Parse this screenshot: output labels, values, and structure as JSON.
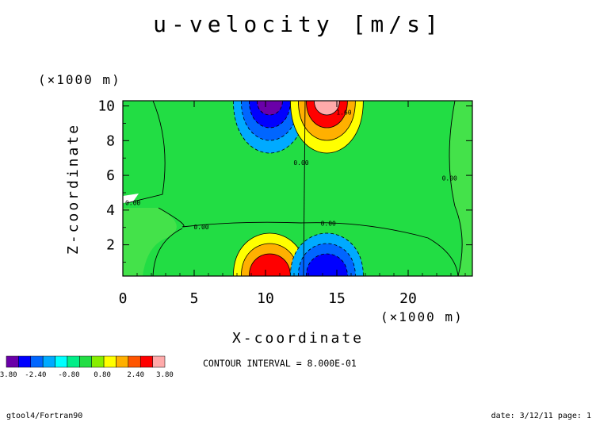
{
  "chart_data": {
    "type": "heatmap",
    "title": "u-velocity [m/s]",
    "xlabel": "X-coordinate",
    "ylabel": "Z-coordinate",
    "x_unit": "(×1000 m)",
    "y_unit": "(×1000 m)",
    "xlim": [
      0,
      24.5
    ],
    "ylim": [
      0.2,
      10.3
    ],
    "x_ticks": [
      0,
      5,
      10,
      15,
      20
    ],
    "y_ticks": [
      2,
      4,
      6,
      8,
      10
    ],
    "contour_interval_text": "CONTOUR INTERVAL = 8.000E-01",
    "contour_labels": [
      {
        "text": "0.00",
        "x": 0.7,
        "y": 4.3
      },
      {
        "text": "0.00",
        "x": 5.5,
        "y": 2.9
      },
      {
        "text": "0.00",
        "x": 14.4,
        "y": 3.1
      },
      {
        "text": "0.00",
        "x": 12.5,
        "y": 6.6
      },
      {
        "text": "0.00",
        "x": 22.9,
        "y": 5.7
      },
      {
        "text": "1.60",
        "x": 15.5,
        "y": 9.5
      }
    ],
    "colorbar": {
      "levels": [
        -3.8,
        -2.4,
        -0.8,
        0.8,
        2.4,
        3.8
      ],
      "labels": [
        "-3.80",
        "-2.40",
        "-0.80",
        "0.80",
        "2.40",
        "3.80"
      ],
      "colors": [
        "#6a00a8",
        "#0000ff",
        "#0066ff",
        "#00aaff",
        "#00ffff",
        "#00ee88",
        "#22dd44",
        "#88ee00",
        "#ffff00",
        "#ffb000",
        "#ff5500",
        "#ff0000",
        "#ffaaaa"
      ]
    },
    "background_color": "#22dd44",
    "features": [
      {
        "kind": "negative",
        "x": 10.3,
        "y": 9.6,
        "levels": [
          -0.8,
          -1.6,
          -2.4,
          -3.2
        ]
      },
      {
        "kind": "positive",
        "x": 14.3,
        "y": 9.6,
        "levels": [
          0.8,
          1.6,
          2.4,
          3.2
        ]
      },
      {
        "kind": "positive",
        "x": 10.3,
        "y": 0.4,
        "levels": [
          0.8,
          1.6,
          2.4
        ]
      },
      {
        "kind": "negative",
        "x": 14.3,
        "y": 0.4,
        "levels": [
          -0.8,
          -1.6,
          -2.4
        ]
      }
    ]
  },
  "footer": {
    "left": "gtool4/Fortran90",
    "right": "date: 3/12/11 page: 1"
  }
}
